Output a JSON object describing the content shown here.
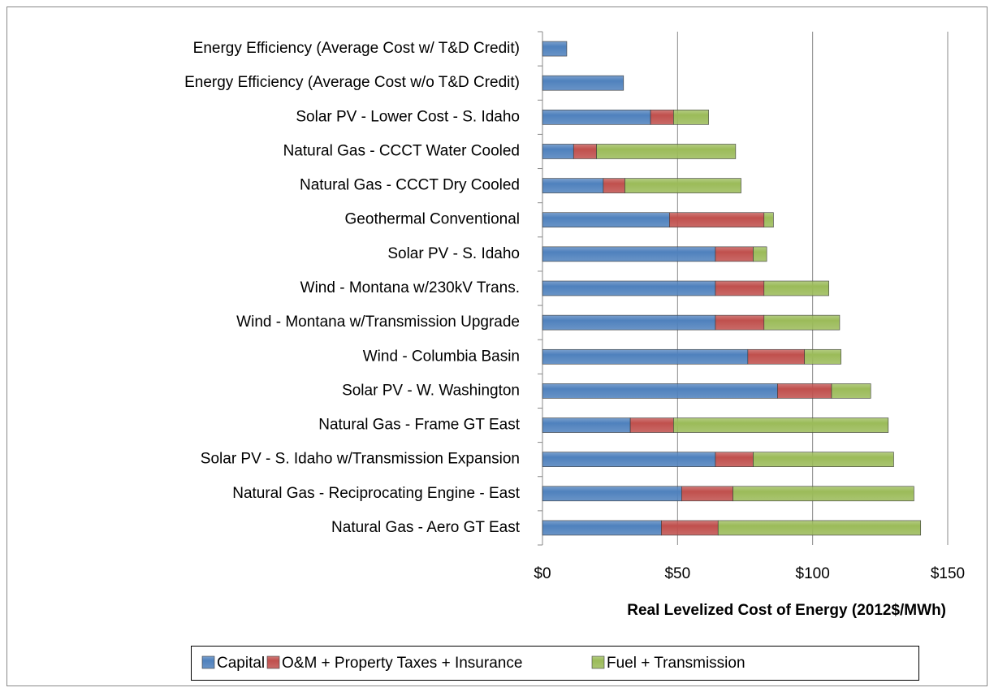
{
  "chart_data": {
    "type": "bar",
    "orientation": "horizontal",
    "stacked": true,
    "x_label": "Real Levelized Cost of Energy (2012$/MWh)",
    "categories": [
      "Energy Efficiency (Average Cost w/ T&D Credit)",
      "Energy Efficiency (Average Cost w/o T&D Credit)",
      "Solar PV - Lower Cost - S. Idaho",
      "Natural Gas - CCCT Water Cooled",
      "Natural Gas - CCCT Dry Cooled",
      "Geothermal Conventional",
      "Solar PV - S. Idaho",
      "Wind - Montana w/230kV Trans.",
      "Wind - Montana w/Transmission Upgrade",
      "Wind - Columbia Basin",
      "Solar PV - W. Washington",
      "Natural Gas - Frame GT East",
      "Solar PV - S. Idaho w/Transmission Expansion",
      "Natural Gas - Reciprocating Engine - East",
      "Natural Gas - Aero GT East"
    ],
    "series": [
      {
        "name": "Capital",
        "color": "#4f81bd",
        "values": [
          9,
          30,
          40,
          11.5,
          22.5,
          47,
          64,
          64,
          64,
          76,
          87,
          32.5,
          64,
          51.5,
          44
        ]
      },
      {
        "name": "O&M + Property Taxes + Insurance",
        "color": "#c0504d",
        "values": [
          null,
          null,
          8.5,
          8.5,
          8,
          35,
          14,
          18,
          18,
          21,
          20,
          16,
          14,
          19,
          21
        ]
      },
      {
        "name": "Fuel + Transmission",
        "color": "#9bbb59",
        "values": [
          null,
          null,
          13,
          51.5,
          43,
          3.5,
          5,
          24,
          28,
          13.5,
          14.5,
          79.5,
          52,
          67,
          75
        ]
      }
    ],
    "xlim": [
      0,
      150
    ],
    "xticks": [
      {
        "value": 0,
        "label": "$0"
      },
      {
        "value": 50,
        "label": "$50"
      },
      {
        "value": 100,
        "label": "$100"
      },
      {
        "value": 150,
        "label": "$150"
      }
    ],
    "grid": true,
    "legend": "bottom"
  }
}
